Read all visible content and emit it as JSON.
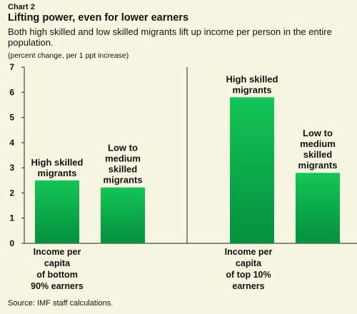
{
  "header": {
    "label": "Chart 2",
    "title": "Lifting power, even for lower earners",
    "subtitle": "Both high skilled and low skilled migrants lift up income per person in the entire population.",
    "unit": "(percent change, per 1 ppt increase)"
  },
  "source": "Source: IMF staff calculations.",
  "colors": {
    "background": "#f7f7e1",
    "bar_light": "#13c556",
    "bar_dark": "#05903e"
  },
  "chart_data": {
    "type": "bar",
    "ylim": [
      0,
      7
    ],
    "yticks": [
      0,
      1,
      2,
      3,
      4,
      5,
      6,
      7
    ],
    "grid": false,
    "groups": [
      {
        "category": [
          "Income per",
          "capita",
          "of bottom",
          "90% earners"
        ],
        "bars": [
          {
            "label": [
              "High skilled",
              "migrants"
            ],
            "value": 2.5
          },
          {
            "label": [
              "Low to",
              "medium",
              "skilled",
              "migrants"
            ],
            "value": 2.22
          }
        ]
      },
      {
        "category": [
          "Income per",
          "capita",
          "of top 10%",
          "earners"
        ],
        "bars": [
          {
            "label": [
              "High skilled",
              "migrants"
            ],
            "value": 5.8
          },
          {
            "label": [
              "Low to",
              "medium",
              "skilled",
              "migrants"
            ],
            "value": 2.8
          }
        ]
      }
    ]
  }
}
